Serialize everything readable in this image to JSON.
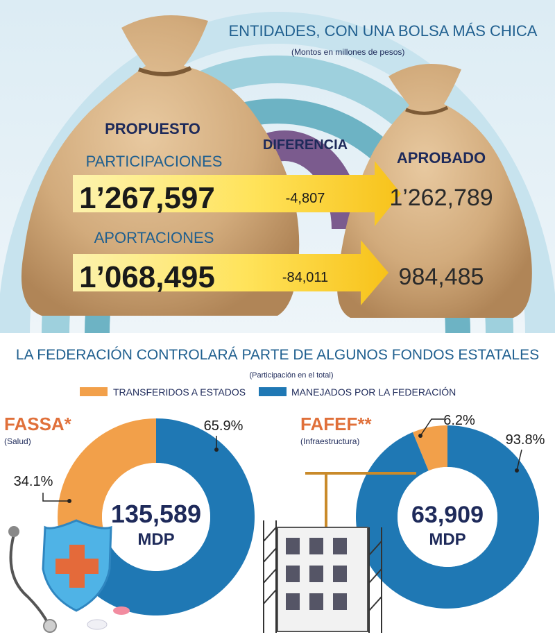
{
  "top": {
    "title": "ENTIDADES, CON UNA BOLSA MÁS CHICA",
    "subtitle": "(Montos en millones de pesos)",
    "col_proposed": "PROPUESTO",
    "col_difference": "DIFERENCIA",
    "col_approved": "APROBADO"
  },
  "bottom": {
    "title": "LA FEDERACIÓN CONTROLARÁ PARTE DE ALGUNOS FONDOS ESTATALES",
    "subtitle": "(Participación en el total)"
  },
  "colors": {
    "transferred": "#f2a04a",
    "managed": "#1f78b4",
    "title_blue": "#1f5f8f",
    "navy": "#1e2a5a",
    "fund_name": "#e0703a"
  },
  "chart_data": [
    {
      "type": "table",
      "title": "ENTIDADES, CON UNA BOLSA MÁS CHICA",
      "subtitle": "(Montos en millones de pesos)",
      "columns": [
        "PROPUESTO",
        "DIFERENCIA",
        "APROBADO"
      ],
      "rows": [
        {
          "label": "PARTICIPACIONES",
          "proposed": 1267597,
          "proposed_label": "1’267,597",
          "difference": -4807,
          "difference_label": "-4,807",
          "approved": 1262789,
          "approved_label": "1’262,789"
        },
        {
          "label": "APORTACIONES",
          "proposed": 1068495,
          "proposed_label": "1’068,495",
          "difference": -84011,
          "difference_label": "-84,011",
          "approved": 984485,
          "approved_label": "984,485"
        }
      ]
    },
    {
      "type": "pie",
      "donut": true,
      "title": "FASSA*",
      "subtitle": "(Salud)",
      "center_value": "135,589",
      "center_unit": "MDP",
      "slices": [
        {
          "name": "TRANSFERIDOS A ESTADOS",
          "value": 34.1,
          "label": "34.1%",
          "color": "#f2a04a"
        },
        {
          "name": "MANEJADOS POR LA FEDERACIÓN",
          "value": 65.9,
          "label": "65.9%",
          "color": "#1f78b4"
        }
      ]
    },
    {
      "type": "pie",
      "donut": true,
      "title": "FAFEF**",
      "subtitle": "(Infraestructura)",
      "center_value": "63,909",
      "center_unit": "MDP",
      "slices": [
        {
          "name": "TRANSFERIDOS A ESTADOS",
          "value": 6.2,
          "label": "6.2%",
          "color": "#f2a04a"
        },
        {
          "name": "MANEJADOS POR LA FEDERACIÓN",
          "value": 93.8,
          "label": "93.8%",
          "color": "#1f78b4"
        }
      ]
    }
  ],
  "legend": [
    {
      "label": "TRANSFERIDOS A ESTADOS",
      "color": "#f2a04a"
    },
    {
      "label": "MANEJADOS POR LA FEDERACIÓN",
      "color": "#1f78b4"
    }
  ]
}
